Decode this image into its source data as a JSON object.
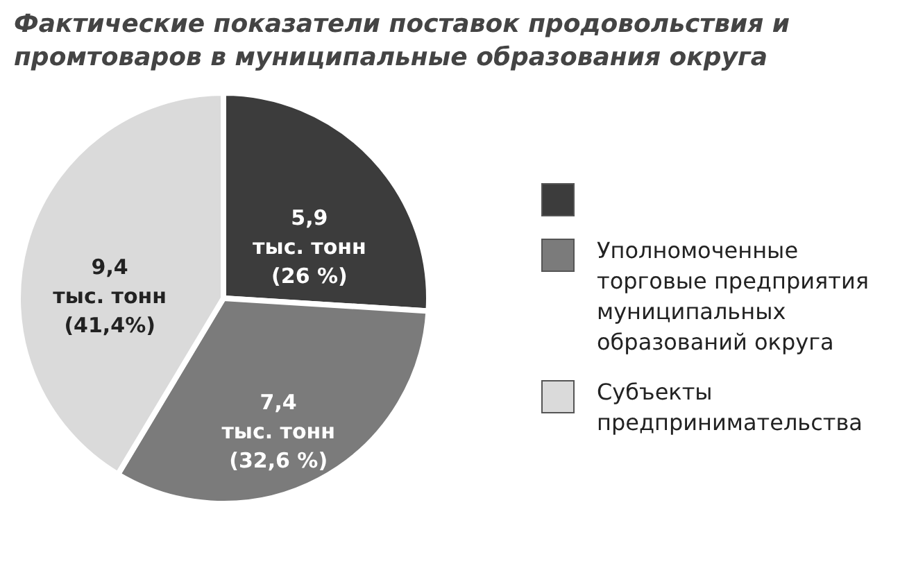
{
  "chart_data": {
    "type": "pie",
    "title": "Фактические показатели поставок продовольствия и промтоваров в муниципальные образования округа",
    "categories": [
      null,
      "Уполномоченные торговые предприятия муниципальных образований округа",
      "Субъекты предпринимательства"
    ],
    "values": [
      5.9,
      7.4,
      9.4
    ],
    "colors": [
      "#3c3c3c",
      "#7b7b7b",
      "#dadada"
    ],
    "value_labels": [
      "5,9\nтыс. тонн\n(26 %)",
      "7,4\nтыс. тонн\n(32,6 %)",
      "9,4\nтыс. тонн\n(41,4%)"
    ],
    "legend": "right"
  }
}
